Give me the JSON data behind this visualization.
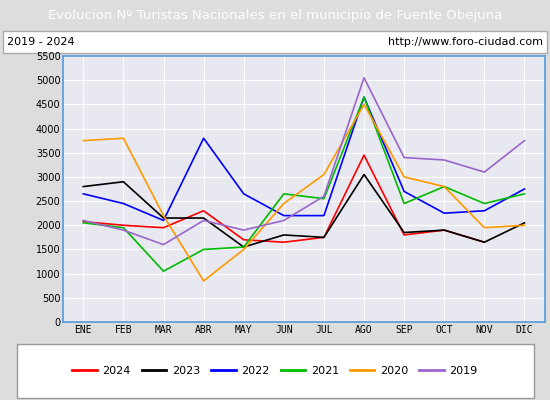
{
  "title": "Evolucion Nº Turistas Nacionales en el municipio de Fuente Obejuna",
  "subtitle_left": "2019 - 2024",
  "subtitle_right": "http://www.foro-ciudad.com",
  "months": [
    "ENE",
    "FEB",
    "MAR",
    "ABR",
    "MAY",
    "JUN",
    "JUL",
    "AGO",
    "SEP",
    "OCT",
    "NOV",
    "DIC"
  ],
  "series": {
    "2024": [
      2075,
      2000,
      1950,
      2300,
      1700,
      1650,
      1750,
      3450,
      1800,
      1900,
      1650,
      null
    ],
    "2023": [
      2800,
      2900,
      2150,
      2150,
      1550,
      1800,
      1750,
      3050,
      1850,
      1900,
      1650,
      2050
    ],
    "2022": [
      2650,
      2450,
      2100,
      3800,
      2650,
      2200,
      2200,
      4650,
      2700,
      2250,
      2300,
      2750
    ],
    "2021": [
      2050,
      1950,
      1050,
      1500,
      1550,
      2650,
      2550,
      4650,
      2450,
      2800,
      2450,
      2650
    ],
    "2020": [
      3750,
      3800,
      2200,
      850,
      1500,
      2450,
      3050,
      4500,
      3000,
      2800,
      1950,
      2000
    ],
    "2019": [
      2100,
      1900,
      1600,
      2100,
      1900,
      2100,
      2600,
      5050,
      3400,
      3350,
      3100,
      3750
    ]
  },
  "colors": {
    "2024": "#ff0000",
    "2023": "#000000",
    "2022": "#0000ff",
    "2021": "#00bb00",
    "2020": "#ff9900",
    "2019": "#9966cc"
  },
  "ylim": [
    0,
    5500
  ],
  "yticks": [
    0,
    500,
    1000,
    1500,
    2000,
    2500,
    3000,
    3500,
    4000,
    4500,
    5000,
    5500
  ],
  "bg_color": "#dddddd",
  "plot_bg_color": "#e8e8f0",
  "title_bg_color": "#5599dd",
  "title_text_color": "#ffffff",
  "border_color": "#5599dd",
  "figwidth": 5.5,
  "figheight": 4.0,
  "dpi": 100
}
